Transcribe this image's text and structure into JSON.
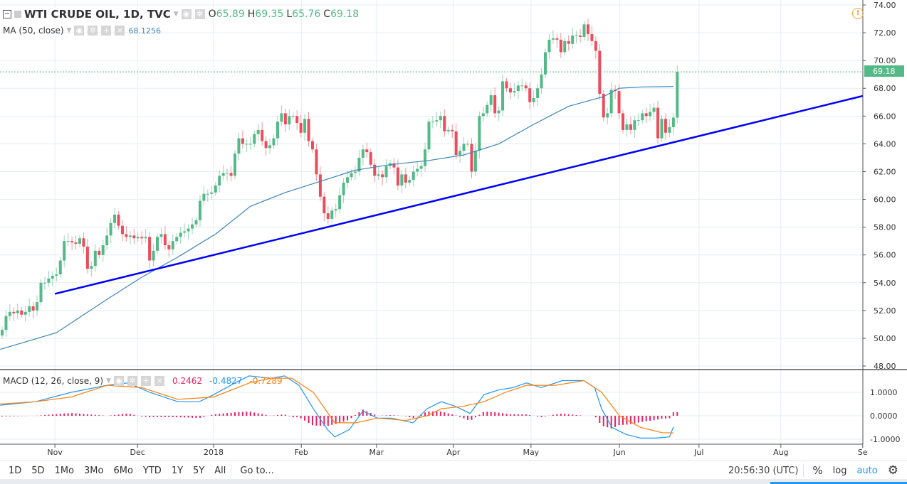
{
  "header": {
    "title": "WTI CRUDE OIL, 1D, TVC",
    "open_label": "O",
    "open": "65.89",
    "high_label": "H",
    "high": "69.35",
    "low_label": "L",
    "low": "65.76",
    "close_label": "C",
    "close": "69.18"
  },
  "ma_legend": {
    "label": "MA (50, close)",
    "value": "68.1256"
  },
  "macd_legend": {
    "label": "MACD (12, 26, close, 9)",
    "hist": "0.2462",
    "macd": "-0.4827",
    "signal": "-0.7289"
  },
  "toolbar": {
    "ranges": [
      "1D",
      "5D",
      "1Mo",
      "3Mo",
      "6Mo",
      "YTD",
      "1Y",
      "5Y",
      "All"
    ],
    "goto": "Go to...",
    "time": "20:56:30 (UTC)",
    "percent": "%",
    "log": "log",
    "auto": "auto"
  },
  "colors": {
    "up": "#53b987",
    "down": "#eb4d5c",
    "ma": "#3d85b8",
    "trend": "#0000ff",
    "macd": "#2196f3",
    "signal": "#ff7f0e",
    "hist": "#e91e63",
    "grid": "#e6edf3"
  },
  "chart_data": {
    "type": "candlestick",
    "title": "WTI CRUDE OIL, 1D, TVC",
    "ylim": [
      48,
      74
    ],
    "price_ticks": [
      "74.00",
      "72.00",
      "70.00",
      "68.00",
      "66.00",
      "64.00",
      "62.00",
      "60.00",
      "58.00",
      "56.00",
      "54.00",
      "52.00",
      "50.00",
      "48.00"
    ],
    "last_price_label": "69.18",
    "time_ticks": [
      {
        "label": "Nov",
        "bar": 13.6
      },
      {
        "label": "Dec",
        "bar": 34.9
      },
      {
        "label": "2018",
        "bar": 54.5
      },
      {
        "label": "Feb",
        "bar": 77.1
      },
      {
        "label": "Mar",
        "bar": 96.5
      },
      {
        "label": "Apr",
        "bar": 116.3
      },
      {
        "label": "May",
        "bar": 136.3
      },
      {
        "label": "Jun",
        "bar": 159.1
      },
      {
        "label": "Jul",
        "bar": 179.6
      },
      {
        "label": "Aug",
        "bar": 200.7
      },
      {
        "label": "Se",
        "bar": 221.8
      }
    ],
    "closes": [
      50.6,
      51.6,
      51.9,
      51.8,
      52.0,
      51.7,
      51.9,
      52.3,
      52.0,
      52.6,
      54.0,
      54.0,
      54.3,
      54.5,
      54.6,
      55.6,
      57.0,
      57.0,
      56.9,
      56.8,
      57.2,
      56.6,
      55.0,
      55.2,
      56.3,
      56.0,
      56.7,
      57.4,
      58.3,
      58.9,
      58.1,
      57.5,
      57.3,
      57.4,
      57.2,
      57.3,
      57.2,
      57.3,
      55.6,
      56.3,
      57.3,
      57.5,
      56.7,
      56.4,
      57.0,
      57.3,
      57.6,
      57.7,
      57.9,
      58.2,
      58.5,
      59.9,
      60.4,
      60.4,
      60.5,
      61.0,
      61.7,
      61.9,
      61.9,
      61.7,
      63.3,
      64.4,
      64.0,
      64.0,
      64.0,
      64.7,
      65.0,
      64.2,
      63.7,
      63.9,
      64.4,
      65.6,
      66.2,
      65.4,
      66.0,
      66.0,
      65.5,
      64.8,
      65.8,
      64.2,
      63.6,
      61.8,
      60.2,
      59.0,
      58.6,
      59.2,
      59.3,
      60.3,
      61.2,
      61.6,
      61.9,
      62.0,
      63.0,
      63.6,
      63.4,
      62.5,
      61.7,
      61.8,
      61.6,
      62.4,
      62.6,
      62.3,
      61.0,
      61.8,
      61.2,
      61.4,
      62.0,
      62.2,
      62.4,
      63.6,
      65.6,
      65.6,
      65.7,
      66.0,
      64.9,
      65.0,
      64.9,
      63.2,
      63.5,
      64.0,
      64.0,
      62.0,
      63.5,
      66.0,
      66.2,
      66.8,
      67.5,
      66.2,
      66.4,
      68.5,
      68.0,
      67.7,
      67.8,
      68.2,
      68.2,
      68.0,
      67.0,
      67.3,
      68.0,
      69.0,
      70.6,
      71.5,
      71.6,
      71.5,
      70.6,
      71.4,
      71.2,
      71.8,
      71.8,
      71.7,
      72.6,
      71.9,
      71.4,
      70.7,
      67.6,
      65.9,
      66.2,
      67.9,
      67.8,
      66.2,
      65.0,
      65.4,
      65.0,
      65.7,
      65.7,
      66.2,
      66.0,
      66.3,
      66.6,
      64.4,
      65.8,
      64.8,
      65.2,
      65.89,
      69.18
    ],
    "ma50": [
      [
        -0.5,
        49.2
      ],
      [
        14,
        50.4
      ],
      [
        27,
        52.8
      ],
      [
        36,
        54.4
      ],
      [
        45,
        55.8
      ],
      [
        55,
        57.5
      ],
      [
        64,
        59.5
      ],
      [
        73,
        60.5
      ],
      [
        82,
        61.3
      ],
      [
        91,
        62.1
      ],
      [
        100,
        62.5
      ],
      [
        110,
        62.8
      ],
      [
        119,
        63.2
      ],
      [
        128,
        64.0
      ],
      [
        137,
        65.4
      ],
      [
        146,
        66.7
      ],
      [
        155,
        67.4
      ],
      [
        159,
        68.0
      ],
      [
        165,
        68.1
      ],
      [
        173,
        68.13
      ]
    ],
    "trendline": [
      [
        13.6,
        53.2
      ],
      [
        221.8,
        67.45
      ]
    ],
    "macd_ylim": [
      -1.2,
      1.8
    ],
    "macd_ticks": [
      "1.0000",
      "0.0000",
      "-1.0000"
    ],
    "macd": [
      [
        -0.5,
        0.45
      ],
      [
        8.6,
        0.6
      ],
      [
        17.8,
        1.0
      ],
      [
        27,
        1.3
      ],
      [
        32.5,
        1.4
      ],
      [
        38,
        1.0
      ],
      [
        45.3,
        0.6
      ],
      [
        50.8,
        0.6
      ],
      [
        54.5,
        0.9
      ],
      [
        60,
        1.4
      ],
      [
        63.7,
        1.7
      ],
      [
        69.2,
        1.6
      ],
      [
        72.8,
        1.7
      ],
      [
        76.5,
        1.3
      ],
      [
        80.2,
        0.3
      ],
      [
        83.9,
        -0.6
      ],
      [
        85.7,
        -0.9
      ],
      [
        89.4,
        -0.6
      ],
      [
        93,
        0.2
      ],
      [
        96.7,
        -0.1
      ],
      [
        100.4,
        -0.1
      ],
      [
        105.9,
        -0.3
      ],
      [
        109.5,
        0.3
      ],
      [
        113.2,
        0.6
      ],
      [
        116.9,
        0.4
      ],
      [
        120.6,
        0.1
      ],
      [
        124.2,
        0.9
      ],
      [
        127.9,
        1.1
      ],
      [
        131.6,
        1.2
      ],
      [
        135.2,
        1.4
      ],
      [
        138.9,
        1.2
      ],
      [
        144.4,
        1.5
      ],
      [
        149.9,
        1.5
      ],
      [
        152.7,
        1.2
      ],
      [
        154.5,
        0.3
      ],
      [
        157.2,
        -0.5
      ],
      [
        160.9,
        -0.8
      ],
      [
        164.6,
        -0.95
      ],
      [
        168.3,
        -0.95
      ],
      [
        172,
        -0.9
      ],
      [
        173,
        -0.48
      ]
    ],
    "signal": [
      [
        -0.5,
        0.5
      ],
      [
        8.6,
        0.6
      ],
      [
        17.8,
        0.8
      ],
      [
        27,
        1.3
      ],
      [
        36,
        1.2
      ],
      [
        45.3,
        0.7
      ],
      [
        54.5,
        0.8
      ],
      [
        63.7,
        1.4
      ],
      [
        69.2,
        1.6
      ],
      [
        74.7,
        1.6
      ],
      [
        80.2,
        1.0
      ],
      [
        85.7,
        -0.3
      ],
      [
        91.2,
        -0.3
      ],
      [
        96.7,
        -0.1
      ],
      [
        104,
        -0.2
      ],
      [
        109.5,
        0.0
      ],
      [
        113.2,
        0.3
      ],
      [
        118.7,
        0.4
      ],
      [
        124.2,
        0.6
      ],
      [
        129.7,
        1.0
      ],
      [
        135.2,
        1.3
      ],
      [
        142.6,
        1.3
      ],
      [
        149.9,
        1.5
      ],
      [
        154.5,
        1.0
      ],
      [
        159.1,
        0.0
      ],
      [
        164.6,
        -0.5
      ],
      [
        170.1,
        -0.72
      ],
      [
        173,
        -0.73
      ]
    ]
  }
}
